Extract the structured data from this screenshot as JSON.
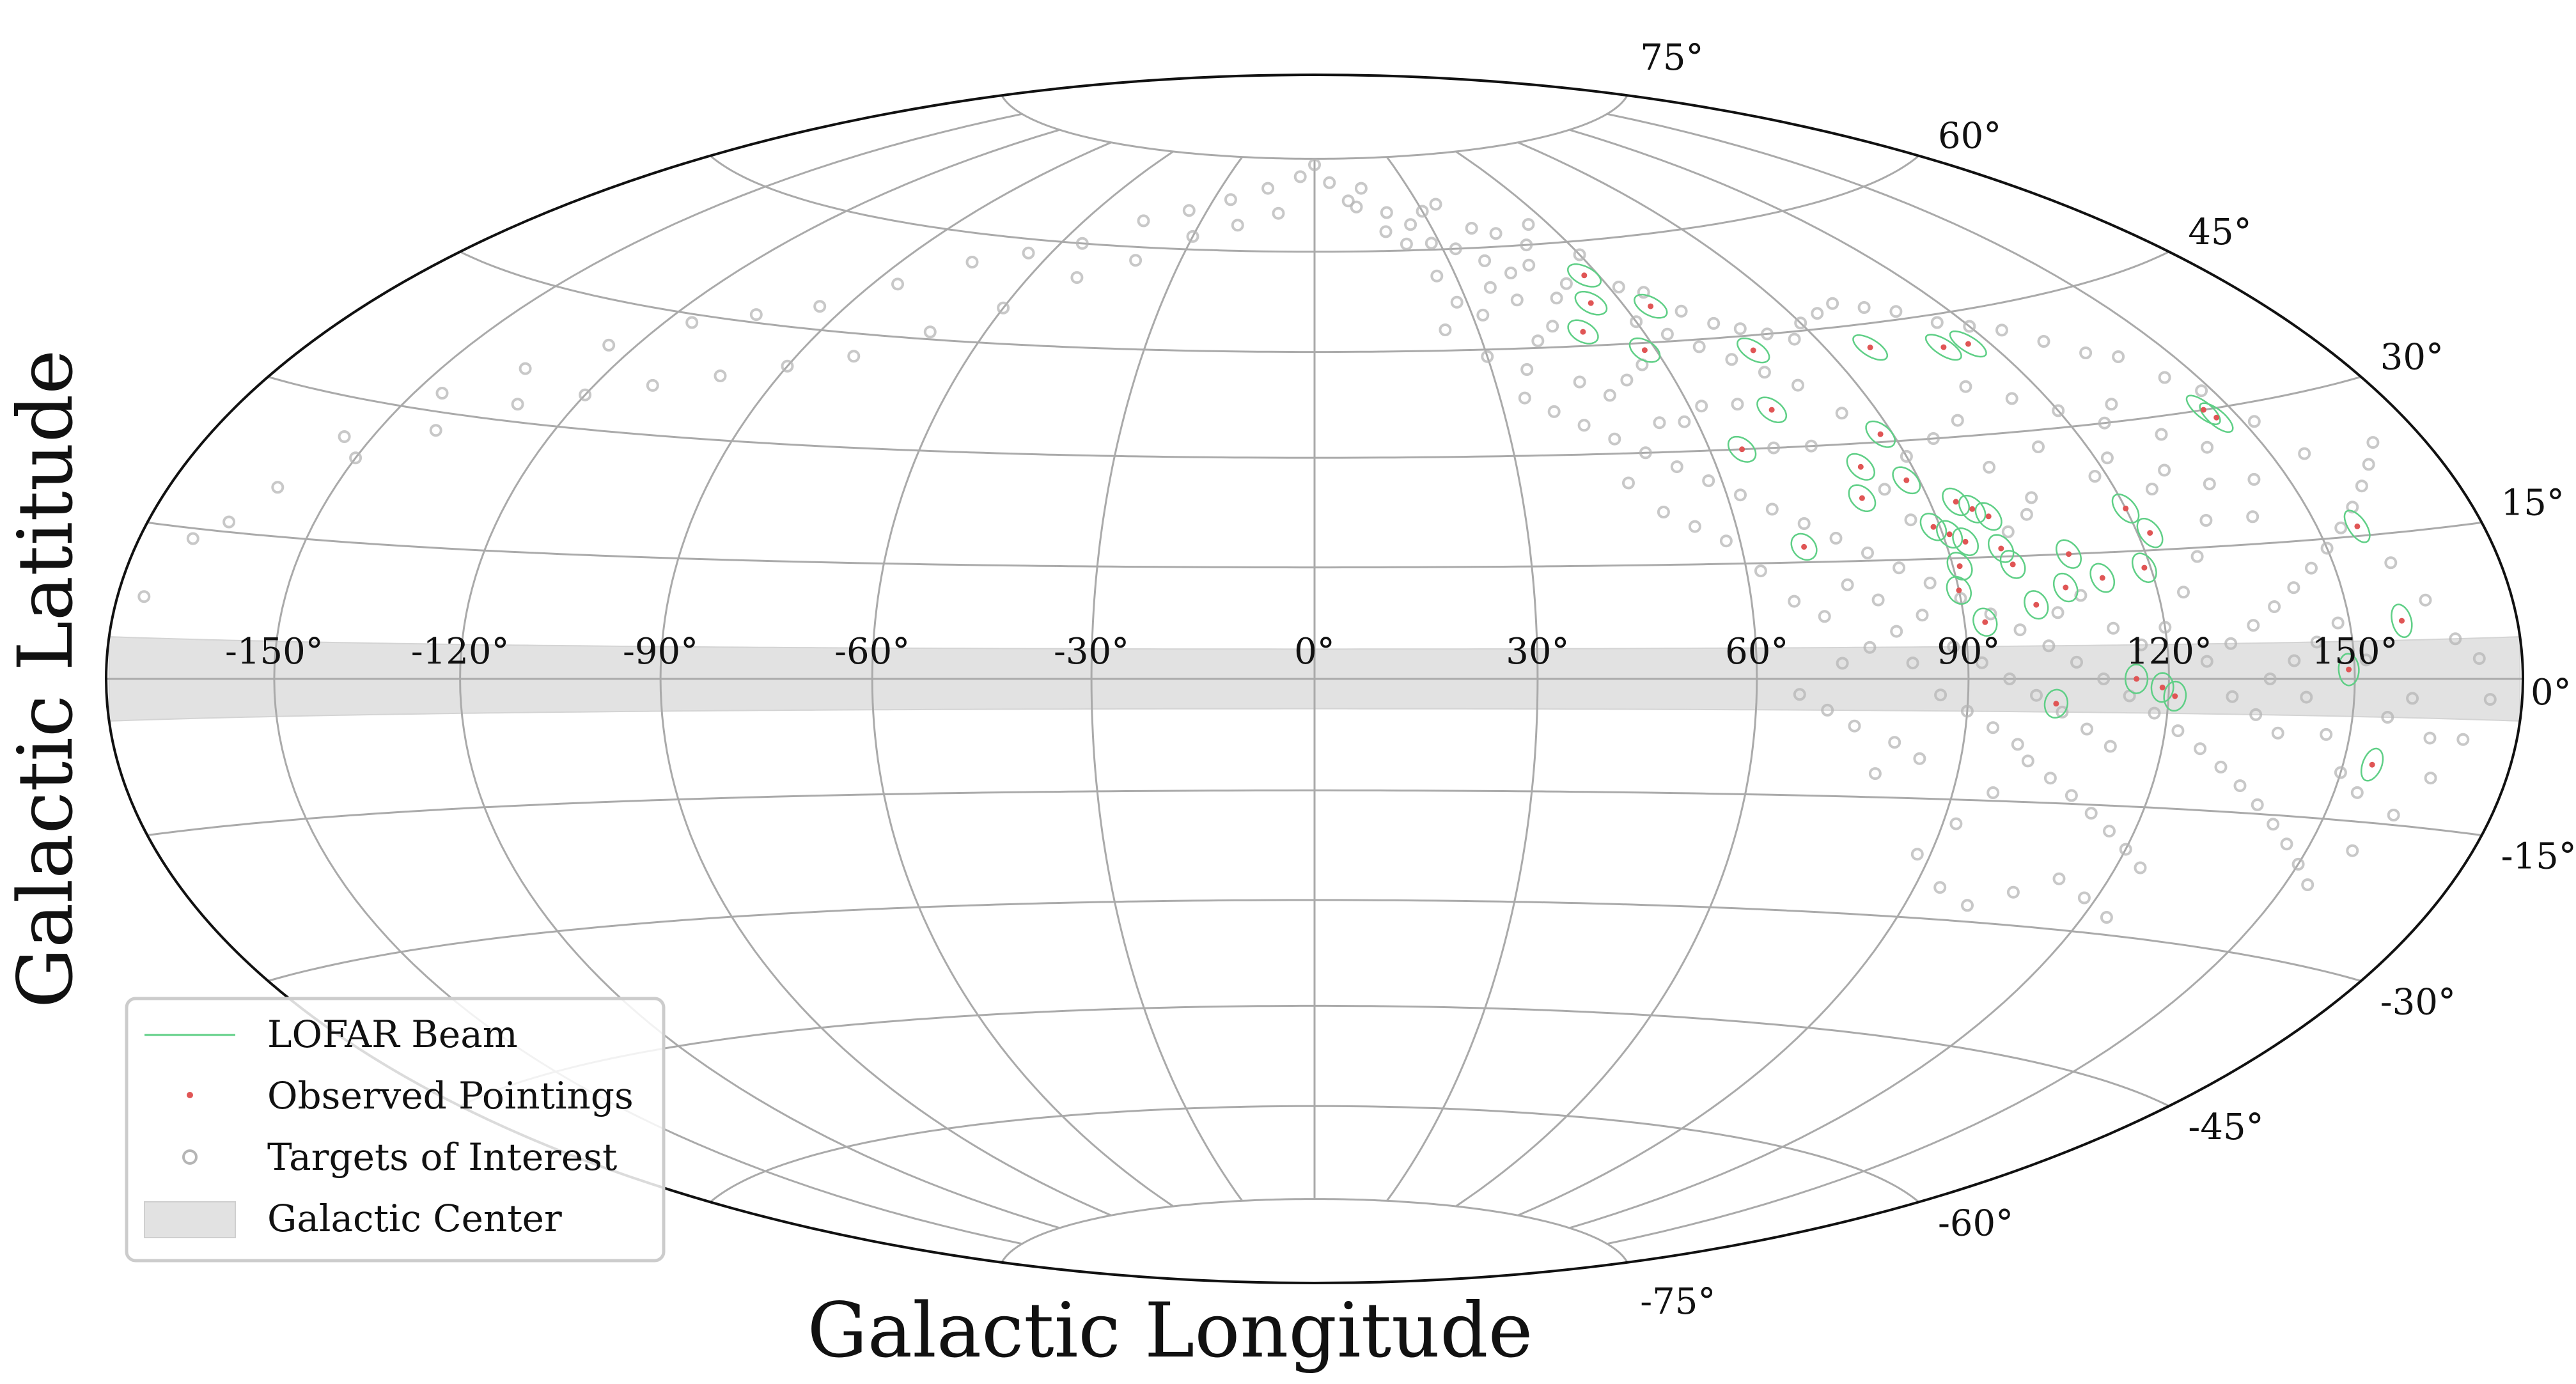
{
  "chart_data": {
    "type": "scatter",
    "projection": "hammer-aitoff (galactic)",
    "title": "",
    "xlabel": "Galactic Longitude",
    "ylabel": "Galactic Latitude",
    "xlim": [
      -180,
      180
    ],
    "ylim": [
      -90,
      90
    ],
    "grid": true,
    "legend_position": "lower-left",
    "longitude_ticks": [
      {
        "value": -150,
        "label": "-150°"
      },
      {
        "value": -120,
        "label": "-120°"
      },
      {
        "value": -90,
        "label": "-90°"
      },
      {
        "value": -60,
        "label": "-60°"
      },
      {
        "value": -30,
        "label": "-30°"
      },
      {
        "value": 0,
        "label": "0°"
      },
      {
        "value": 30,
        "label": "30°"
      },
      {
        "value": 60,
        "label": "60°"
      },
      {
        "value": 90,
        "label": "90°"
      },
      {
        "value": 120,
        "label": "120°"
      },
      {
        "value": 150,
        "label": "150°"
      }
    ],
    "latitude_ticks": [
      {
        "value": 75,
        "label": "75°"
      },
      {
        "value": 60,
        "label": "60°"
      },
      {
        "value": 45,
        "label": "45°"
      },
      {
        "value": 30,
        "label": "30°"
      },
      {
        "value": 15,
        "label": "15°"
      },
      {
        "value": 0,
        "label": "0°"
      },
      {
        "value": -15,
        "label": "-15°"
      },
      {
        "value": -30,
        "label": "-30°"
      },
      {
        "value": -45,
        "label": "-45°"
      },
      {
        "value": -60,
        "label": "-60°"
      },
      {
        "value": -75,
        "label": "-75°"
      }
    ],
    "galactic_center_band": {
      "lat_min": -4,
      "lat_max": 4
    },
    "beam_radius_deg": 1.7,
    "series": [
      {
        "name": "LOFAR Beam",
        "color": "#5fcf86",
        "marker": "ellipse-outline",
        "note_ref": "drawn around each observed pointing"
      },
      {
        "name": "Observed Pointings",
        "color": "#e05555",
        "marker": "dot",
        "points": [
          [
            57,
            55
          ],
          [
            54,
            51
          ],
          [
            49,
            47
          ],
          [
            65,
            50
          ],
          [
            77,
            43
          ],
          [
            58,
            44
          ],
          [
            73,
            35
          ],
          [
            98,
            42
          ],
          [
            111,
            41
          ],
          [
            116,
            41
          ],
          [
            145,
            30
          ],
          [
            146,
            29
          ],
          [
            65,
            30
          ],
          [
            82,
            27
          ],
          [
            88,
            25
          ],
          [
            88,
            31
          ],
          [
            80,
            23
          ],
          [
            94,
            22
          ],
          [
            96,
            21
          ],
          [
            98,
            20
          ],
          [
            98,
            16
          ],
          [
            89,
            19
          ],
          [
            91,
            18
          ],
          [
            93,
            17
          ],
          [
            91,
            14
          ],
          [
            90,
            11
          ],
          [
            99,
            14
          ],
          [
            108,
            15
          ],
          [
            120,
            20
          ],
          [
            122,
            17
          ],
          [
            112,
            12
          ],
          [
            101,
            9
          ],
          [
            93,
            7
          ],
          [
            69,
            17
          ],
          [
            106,
            11
          ],
          [
            119,
            13
          ],
          [
            157,
            16
          ],
          [
            159,
            6
          ],
          [
            149,
            1
          ],
          [
            115,
            0
          ],
          [
            119,
            -1
          ],
          [
            121,
            -2
          ],
          [
            103,
            -3
          ],
          [
            155,
            -9
          ]
        ]
      },
      {
        "name": "Targets of Interest",
        "color": "#b5b5b5",
        "marker": "open-circle",
        "points": [
          [
            10,
            68
          ],
          [
            12,
            67
          ],
          [
            15,
            70
          ],
          [
            20,
            66
          ],
          [
            25,
            64
          ],
          [
            30,
            66
          ],
          [
            35,
            67
          ],
          [
            40,
            63
          ],
          [
            45,
            62
          ],
          [
            50,
            60
          ],
          [
            55,
            63
          ],
          [
            60,
            58
          ],
          [
            18,
            63
          ],
          [
            22,
            61
          ],
          [
            28,
            61
          ],
          [
            33,
            60
          ],
          [
            38,
            58
          ],
          [
            42,
            56
          ],
          [
            47,
            57
          ],
          [
            52,
            54
          ],
          [
            62,
            53
          ],
          [
            66,
            52
          ],
          [
            70,
            49
          ],
          [
            74,
            47
          ],
          [
            78,
            46
          ],
          [
            82,
            45
          ],
          [
            86,
            44
          ],
          [
            90,
            46
          ],
          [
            95,
            47
          ],
          [
            100,
            48
          ],
          [
            105,
            47
          ],
          [
            110,
            46
          ],
          [
            115,
            44
          ],
          [
            120,
            43
          ],
          [
            125,
            42
          ],
          [
            130,
            40
          ],
          [
            135,
            38
          ],
          [
            140,
            37
          ],
          [
            48,
            52
          ],
          [
            44,
            48
          ],
          [
            40,
            46
          ],
          [
            36,
            42
          ],
          [
            34,
            38
          ],
          [
            38,
            36
          ],
          [
            42,
            34
          ],
          [
            46,
            32
          ],
          [
            50,
            30
          ],
          [
            54,
            28
          ],
          [
            58,
            26
          ],
          [
            62,
            24
          ],
          [
            66,
            22
          ],
          [
            70,
            20
          ],
          [
            74,
            18
          ],
          [
            78,
            16
          ],
          [
            82,
            14
          ],
          [
            86,
            12
          ],
          [
            90,
            10
          ],
          [
            94,
            8
          ],
          [
            98,
            6
          ],
          [
            102,
            4
          ],
          [
            106,
            2
          ],
          [
            110,
            0
          ],
          [
            114,
            -2
          ],
          [
            118,
            -4
          ],
          [
            122,
            -6
          ],
          [
            126,
            -8
          ],
          [
            130,
            -10
          ],
          [
            134,
            -12
          ],
          [
            138,
            -14
          ],
          [
            142,
            -16
          ],
          [
            146,
            -18
          ],
          [
            150,
            -20
          ],
          [
            100,
            -10
          ],
          [
            104,
            -12
          ],
          [
            108,
            -14
          ],
          [
            112,
            -16
          ],
          [
            116,
            -18
          ],
          [
            120,
            -20
          ],
          [
            124,
            -22
          ],
          [
            96,
            -14
          ],
          [
            92,
            -18
          ],
          [
            88,
            -22
          ],
          [
            94,
            -26
          ],
          [
            100,
            -28
          ],
          [
            106,
            -26
          ],
          [
            112,
            -24
          ],
          [
            118,
            -26
          ],
          [
            124,
            -28
          ],
          [
            80,
            -8
          ],
          [
            84,
            -10
          ],
          [
            78,
            -12
          ],
          [
            74,
            -6
          ],
          [
            70,
            -4
          ],
          [
            66,
            -2
          ],
          [
            72,
            2
          ],
          [
            76,
            4
          ],
          [
            80,
            6
          ],
          [
            84,
            8
          ],
          [
            88,
            4
          ],
          [
            92,
            2
          ],
          [
            96,
            0
          ],
          [
            100,
            -2
          ],
          [
            104,
            -4
          ],
          [
            108,
            -6
          ],
          [
            112,
            -8
          ],
          [
            126,
            2
          ],
          [
            130,
            4
          ],
          [
            134,
            6
          ],
          [
            138,
            8
          ],
          [
            142,
            10
          ],
          [
            146,
            12
          ],
          [
            150,
            14
          ],
          [
            154,
            16
          ],
          [
            158,
            18
          ],
          [
            162,
            20
          ],
          [
            166,
            22
          ],
          [
            170,
            24
          ],
          [
            128,
            14
          ],
          [
            132,
            18
          ],
          [
            136,
            22
          ],
          [
            140,
            26
          ],
          [
            144,
            34
          ],
          [
            148,
            32
          ],
          [
            152,
            28
          ],
          [
            156,
            24
          ],
          [
            160,
            12
          ],
          [
            164,
            8
          ],
          [
            168,
            4
          ],
          [
            172,
            2
          ],
          [
            174,
            -2
          ],
          [
            170,
            -6
          ],
          [
            166,
            -10
          ],
          [
            162,
            -14
          ],
          [
            158,
            -18
          ],
          [
            154,
            -22
          ],
          [
            126,
            30
          ],
          [
            130,
            32
          ],
          [
            134,
            28
          ],
          [
            120,
            32
          ],
          [
            114,
            34
          ],
          [
            108,
            36
          ],
          [
            102,
            32
          ],
          [
            96,
            30
          ],
          [
            90,
            28
          ],
          [
            84,
            34
          ],
          [
            80,
            38
          ],
          [
            76,
            40
          ],
          [
            72,
            42
          ],
          [
            68,
            44
          ],
          [
            64,
            46
          ],
          [
            60,
            48
          ],
          [
            56,
            42
          ],
          [
            52,
            40
          ],
          [
            48,
            38
          ],
          [
            46,
            26
          ],
          [
            50,
            22
          ],
          [
            54,
            20
          ],
          [
            58,
            18
          ],
          [
            62,
            14
          ],
          [
            66,
            10
          ],
          [
            70,
            8
          ],
          [
            74,
            12
          ],
          [
            78,
            10
          ],
          [
            82,
            2
          ],
          [
            86,
            -2
          ],
          [
            90,
            -4
          ],
          [
            94,
            -6
          ],
          [
            98,
            -8
          ],
          [
            104,
            8
          ],
          [
            108,
            10
          ],
          [
            112,
            6
          ],
          [
            116,
            4
          ],
          [
            120,
            6
          ],
          [
            124,
            10
          ],
          [
            118,
            24
          ],
          [
            122,
            26
          ],
          [
            126,
            22
          ],
          [
            130,
            24
          ],
          [
            112,
            28
          ],
          [
            106,
            22
          ],
          [
            102,
            26
          ],
          [
            100,
            18
          ],
          [
            104,
            20
          ],
          [
            84,
            24
          ],
          [
            86,
            20
          ],
          [
            76,
            30
          ],
          [
            70,
            30
          ],
          [
            68,
            36
          ],
          [
            62,
            36
          ],
          [
            58,
            34
          ],
          [
            54,
            34
          ],
          [
            44,
            40
          ],
          [
            40,
            52
          ],
          [
            36,
            54
          ],
          [
            32,
            50
          ],
          [
            28,
            52
          ],
          [
            26,
            56
          ],
          [
            24,
            48
          ],
          [
            30,
            44
          ],
          [
            140,
            18
          ],
          [
            144,
            22
          ],
          [
            148,
            6
          ],
          [
            152,
            2
          ],
          [
            156,
            -4
          ],
          [
            160,
            -2
          ],
          [
            164,
            -6
          ],
          [
            130,
            -2
          ],
          [
            134,
            -4
          ],
          [
            138,
            -6
          ],
          [
            142,
            -2
          ],
          [
            146,
            -6
          ],
          [
            150,
            -10
          ],
          [
            154,
            -12
          ],
          [
            136,
            0
          ],
          [
            140,
            2
          ],
          [
            144,
            4
          ],
          [
            -10,
            66
          ],
          [
            -20,
            64
          ],
          [
            -30,
            62
          ],
          [
            -40,
            58
          ],
          [
            -50,
            55
          ],
          [
            -60,
            50
          ],
          [
            -70,
            46
          ],
          [
            -80,
            42
          ],
          [
            -90,
            40
          ],
          [
            -100,
            38
          ],
          [
            -110,
            36
          ],
          [
            -120,
            34
          ],
          [
            -130,
            32
          ],
          [
            -140,
            28
          ],
          [
            -150,
            24
          ],
          [
            -160,
            20
          ],
          [
            -170,
            14
          ],
          [
            -175,
            8
          ],
          [
            -165,
            16
          ],
          [
            -155,
            26
          ],
          [
            -145,
            32
          ],
          [
            -135,
            36
          ],
          [
            -125,
            40
          ],
          [
            -115,
            44
          ],
          [
            -105,
            46
          ],
          [
            -95,
            48
          ],
          [
            -85,
            52
          ],
          [
            -75,
            56
          ],
          [
            -65,
            58
          ],
          [
            -55,
            60
          ],
          [
            -45,
            64
          ],
          [
            -35,
            66
          ],
          [
            -25,
            68
          ],
          [
            -15,
            70
          ],
          [
            -5,
            72
          ],
          [
            0,
            74
          ],
          [
            5,
            71
          ]
        ]
      },
      {
        "name": "Galactic Center",
        "color": "#e2e2e2",
        "marker": "band"
      }
    ]
  },
  "legend": [
    {
      "label": "LOFAR Beam"
    },
    {
      "label": "Observed Pointings"
    },
    {
      "label": "Targets of Interest"
    },
    {
      "label": "Galactic Center"
    }
  ]
}
